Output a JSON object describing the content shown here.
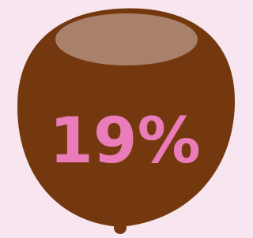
{
  "stat": {
    "text": "19%"
  }
}
